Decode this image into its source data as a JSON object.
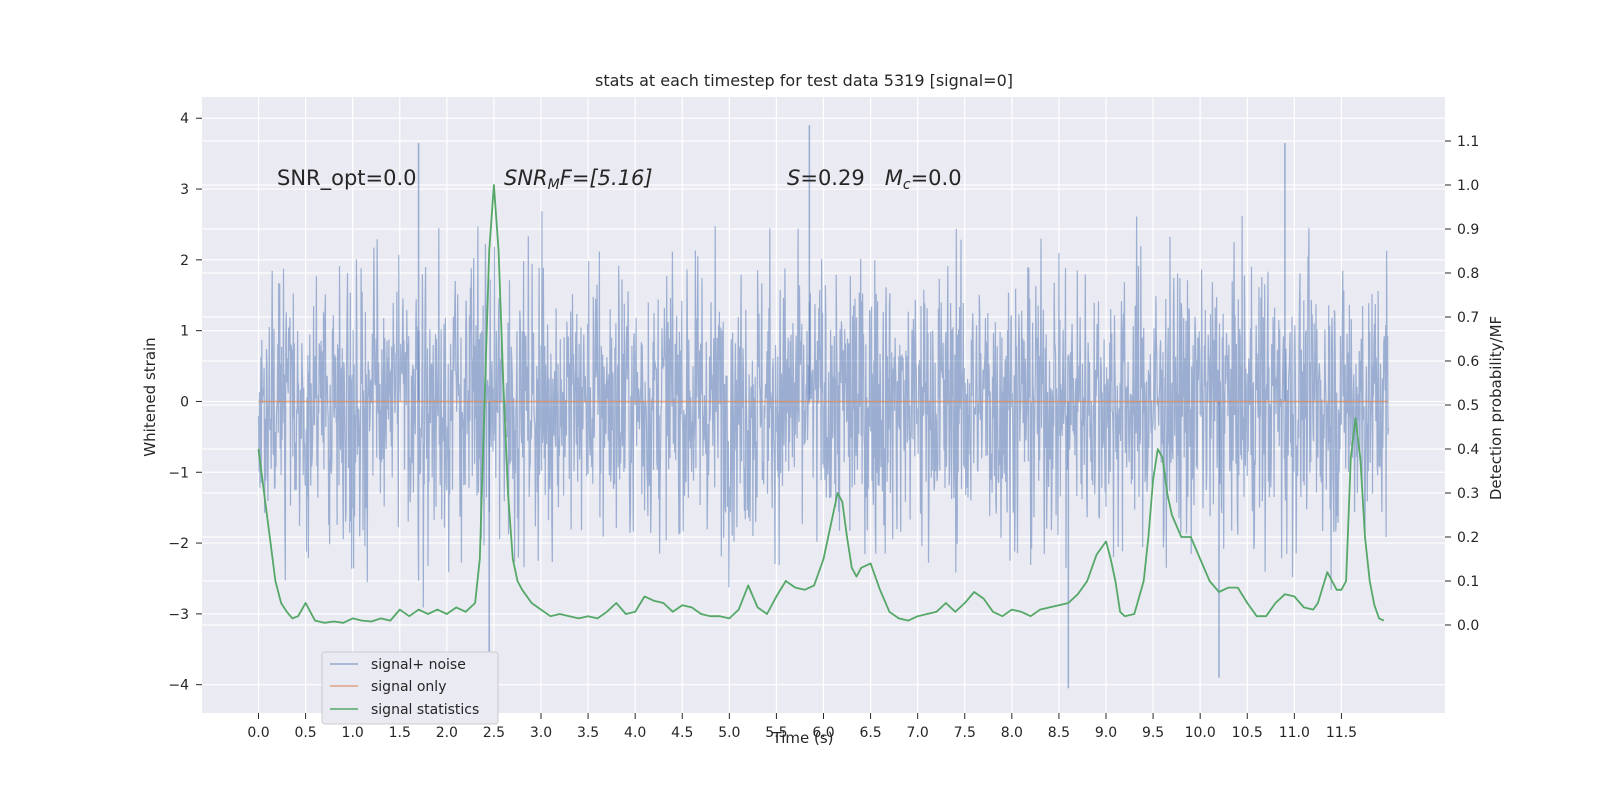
{
  "chart_data": {
    "type": "line",
    "title": "stats at each timestep for test data 5319 [signal=0]",
    "xlabel": "Time (s)",
    "ylabel": "Whitened strain",
    "y2label": "Detection probability/MF",
    "xlim": [
      -0.6,
      12.6
    ],
    "ylim": [
      -4.4,
      4.3
    ],
    "y2lim": [
      -0.2,
      1.2
    ],
    "xticks": [
      0.0,
      0.5,
      1.0,
      1.5,
      2.0,
      2.5,
      3.0,
      3.5,
      4.0,
      4.5,
      5.0,
      5.5,
      6.0,
      6.5,
      7.0,
      7.5,
      8.0,
      8.5,
      9.0,
      9.5,
      10.0,
      10.5,
      11.0,
      11.5
    ],
    "xtick_labels": [
      "0.0",
      "0.5",
      "1.0",
      "1.5",
      "2.0",
      "2.5",
      "3.0",
      "3.5",
      "4.0",
      "4.5",
      "5.0",
      "5.5",
      "6.0",
      "6.5",
      "7.0",
      "7.5",
      "8.0",
      "8.5",
      "9.0",
      "9.5",
      "10.0",
      "10.5",
      "11.0",
      "11.5"
    ],
    "yticks": [
      -4,
      -3,
      -2,
      -1,
      0,
      1,
      2,
      3,
      4
    ],
    "ytick_labels": [
      "−4",
      "−3",
      "−2",
      "−1",
      "0",
      "1",
      "2",
      "3",
      "4"
    ],
    "y2ticks": [
      0.0,
      0.1,
      0.2,
      0.3,
      0.4,
      0.5,
      0.6,
      0.7,
      0.8,
      0.9,
      1.0,
      1.1
    ],
    "y2tick_labels": [
      "0.0",
      "0.1",
      "0.2",
      "0.3",
      "0.4",
      "0.5",
      "0.6",
      "0.7",
      "0.8",
      "0.9",
      "1.0",
      "1.1"
    ],
    "annotations": [
      {
        "text": "SNR_opt=0.0"
      },
      {
        "text": "SNR",
        "sub": "M",
        "rest": "F=[5.16]"
      },
      {
        "text": "S",
        "rest": "=0.29   ",
        "text2": "M",
        "sub2": "c",
        "rest2": "=0.0"
      }
    ],
    "legend": {
      "placement": "lower-left",
      "entries": [
        "signal+ noise",
        "signal only",
        "signal statistics"
      ]
    },
    "series": [
      {
        "name": "signal+ noise",
        "axis": "left",
        "color": "#4c72b0",
        "note": "whitened noise trace 0 to 12 s, roughly gaussian, spikes reaching about ±4",
        "x_range": [
          0.0,
          12.0
        ],
        "typical_spread": 2.2,
        "peak_spikes": [
          [
            1.7,
            3.65
          ],
          [
            5.85,
            3.9
          ],
          [
            10.9,
            3.65
          ],
          [
            8.6,
            -4.05
          ],
          [
            10.2,
            -3.9
          ],
          [
            2.45,
            -4.0
          ]
        ]
      },
      {
        "name": "signal only",
        "axis": "left",
        "color": "#dd8452",
        "x": [
          0.0,
          12.0
        ],
        "values": [
          0.0,
          0.0
        ]
      },
      {
        "name": "signal statistics",
        "axis": "right",
        "color": "#55a868",
        "x": [
          0.0,
          0.06,
          0.12,
          0.18,
          0.24,
          0.3,
          0.36,
          0.42,
          0.5,
          0.6,
          0.7,
          0.8,
          0.9,
          1.0,
          1.1,
          1.2,
          1.3,
          1.4,
          1.5,
          1.6,
          1.7,
          1.8,
          1.9,
          2.0,
          2.1,
          2.2,
          2.3,
          2.35,
          2.4,
          2.45,
          2.5,
          2.55,
          2.6,
          2.65,
          2.7,
          2.75,
          2.8,
          2.9,
          3.0,
          3.1,
          3.2,
          3.3,
          3.4,
          3.5,
          3.6,
          3.7,
          3.8,
          3.9,
          4.0,
          4.1,
          4.2,
          4.3,
          4.4,
          4.5,
          4.6,
          4.7,
          4.8,
          4.9,
          5.0,
          5.1,
          5.2,
          5.3,
          5.4,
          5.5,
          5.6,
          5.7,
          5.8,
          5.9,
          6.0,
          6.1,
          6.15,
          6.2,
          6.25,
          6.3,
          6.35,
          6.4,
          6.5,
          6.6,
          6.7,
          6.8,
          6.9,
          7.0,
          7.1,
          7.2,
          7.3,
          7.4,
          7.5,
          7.6,
          7.7,
          7.8,
          7.9,
          8.0,
          8.1,
          8.2,
          8.3,
          8.4,
          8.5,
          8.6,
          8.7,
          8.8,
          8.9,
          9.0,
          9.05,
          9.1,
          9.15,
          9.2,
          9.3,
          9.4,
          9.45,
          9.5,
          9.55,
          9.6,
          9.65,
          9.7,
          9.8,
          9.9,
          10.0,
          10.1,
          10.2,
          10.3,
          10.4,
          10.5,
          10.6,
          10.7,
          10.8,
          10.9,
          11.0,
          11.1,
          11.2,
          11.25,
          11.3,
          11.35,
          11.4,
          11.45,
          11.5,
          11.55,
          11.6,
          11.65,
          11.7,
          11.75,
          11.8,
          11.85,
          11.9,
          11.95
        ],
        "values": [
          0.4,
          0.3,
          0.2,
          0.1,
          0.05,
          0.03,
          0.015,
          0.02,
          0.05,
          0.01,
          0.005,
          0.008,
          0.005,
          0.015,
          0.01,
          0.008,
          0.015,
          0.01,
          0.035,
          0.02,
          0.035,
          0.025,
          0.035,
          0.025,
          0.04,
          0.03,
          0.05,
          0.15,
          0.5,
          0.85,
          1.0,
          0.85,
          0.55,
          0.3,
          0.15,
          0.1,
          0.08,
          0.05,
          0.035,
          0.02,
          0.025,
          0.02,
          0.015,
          0.02,
          0.015,
          0.03,
          0.05,
          0.025,
          0.03,
          0.065,
          0.055,
          0.05,
          0.03,
          0.045,
          0.04,
          0.025,
          0.02,
          0.02,
          0.015,
          0.035,
          0.09,
          0.04,
          0.025,
          0.065,
          0.1,
          0.085,
          0.08,
          0.09,
          0.15,
          0.25,
          0.3,
          0.28,
          0.2,
          0.13,
          0.11,
          0.13,
          0.14,
          0.08,
          0.03,
          0.015,
          0.01,
          0.02,
          0.025,
          0.03,
          0.05,
          0.03,
          0.05,
          0.075,
          0.06,
          0.03,
          0.02,
          0.035,
          0.03,
          0.02,
          0.035,
          0.04,
          0.045,
          0.05,
          0.07,
          0.1,
          0.16,
          0.19,
          0.15,
          0.1,
          0.03,
          0.02,
          0.025,
          0.1,
          0.2,
          0.33,
          0.4,
          0.38,
          0.3,
          0.25,
          0.2,
          0.2,
          0.15,
          0.1,
          0.075,
          0.085,
          0.085,
          0.05,
          0.02,
          0.02,
          0.05,
          0.07,
          0.065,
          0.04,
          0.035,
          0.05,
          0.085,
          0.12,
          0.1,
          0.08,
          0.08,
          0.1,
          0.38,
          0.47,
          0.38,
          0.2,
          0.1,
          0.045,
          0.015,
          0.01
        ]
      }
    ]
  }
}
